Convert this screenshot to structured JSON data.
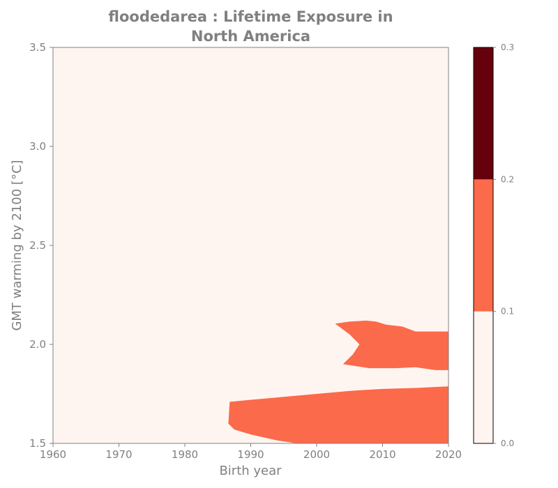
{
  "chart_data": {
    "type": "heatmap",
    "title_line1": "floodedarea : Lifetime Exposure in",
    "title_line2": "North America",
    "xlabel": "Birth year",
    "ylabel": "GMT warming by 2100 [°C]",
    "xlim": [
      1960,
      2020
    ],
    "ylim": [
      1.5,
      3.5
    ],
    "xticks": [
      "1960",
      "1970",
      "1980",
      "1990",
      "2000",
      "2010",
      "2020"
    ],
    "yticks": [
      "1.5",
      "2.0",
      "2.5",
      "3.0",
      "3.5"
    ],
    "grid": false,
    "colorbar": {
      "ticks": [
        "0.0",
        "0.1",
        "0.2",
        "0.3"
      ],
      "levels": [
        0.0,
        0.1,
        0.2,
        0.3
      ],
      "colors": [
        "#fff5f0",
        "#fb6a4a",
        "#67000d"
      ]
    },
    "background_level_color": "#fff5f0",
    "regions": [
      {
        "level": "0.1–0.2",
        "color": "#fb6a4a",
        "outline": [
          [
            1986.8,
            1.71
          ],
          [
            1990,
            1.72
          ],
          [
            1995,
            1.735
          ],
          [
            2000,
            1.75
          ],
          [
            2005,
            1.765
          ],
          [
            2010,
            1.775
          ],
          [
            2015,
            1.78
          ],
          [
            2020,
            1.788
          ],
          [
            2020,
            1.5
          ],
          [
            1997,
            1.5
          ],
          [
            1994,
            1.515
          ],
          [
            1990,
            1.545
          ],
          [
            1987.5,
            1.57
          ],
          [
            1986.6,
            1.6
          ]
        ]
      },
      {
        "level": "0.1–0.2",
        "color": "#fb6a4a",
        "outline": [
          [
            2002.8,
            2.105
          ],
          [
            2005,
            2.115
          ],
          [
            2007.5,
            2.12
          ],
          [
            2009,
            2.115
          ],
          [
            2010.5,
            2.1
          ],
          [
            2013,
            2.09
          ],
          [
            2015,
            2.065
          ],
          [
            2017,
            2.065
          ],
          [
            2020,
            2.065
          ],
          [
            2020,
            1.87
          ],
          [
            2018,
            1.87
          ],
          [
            2015,
            1.885
          ],
          [
            2012,
            1.88
          ],
          [
            2008,
            1.88
          ],
          [
            2006,
            1.89
          ],
          [
            2004,
            1.9
          ],
          [
            2005.5,
            1.95
          ],
          [
            2006.5,
            2.0
          ],
          [
            2005,
            2.05
          ]
        ]
      }
    ]
  }
}
